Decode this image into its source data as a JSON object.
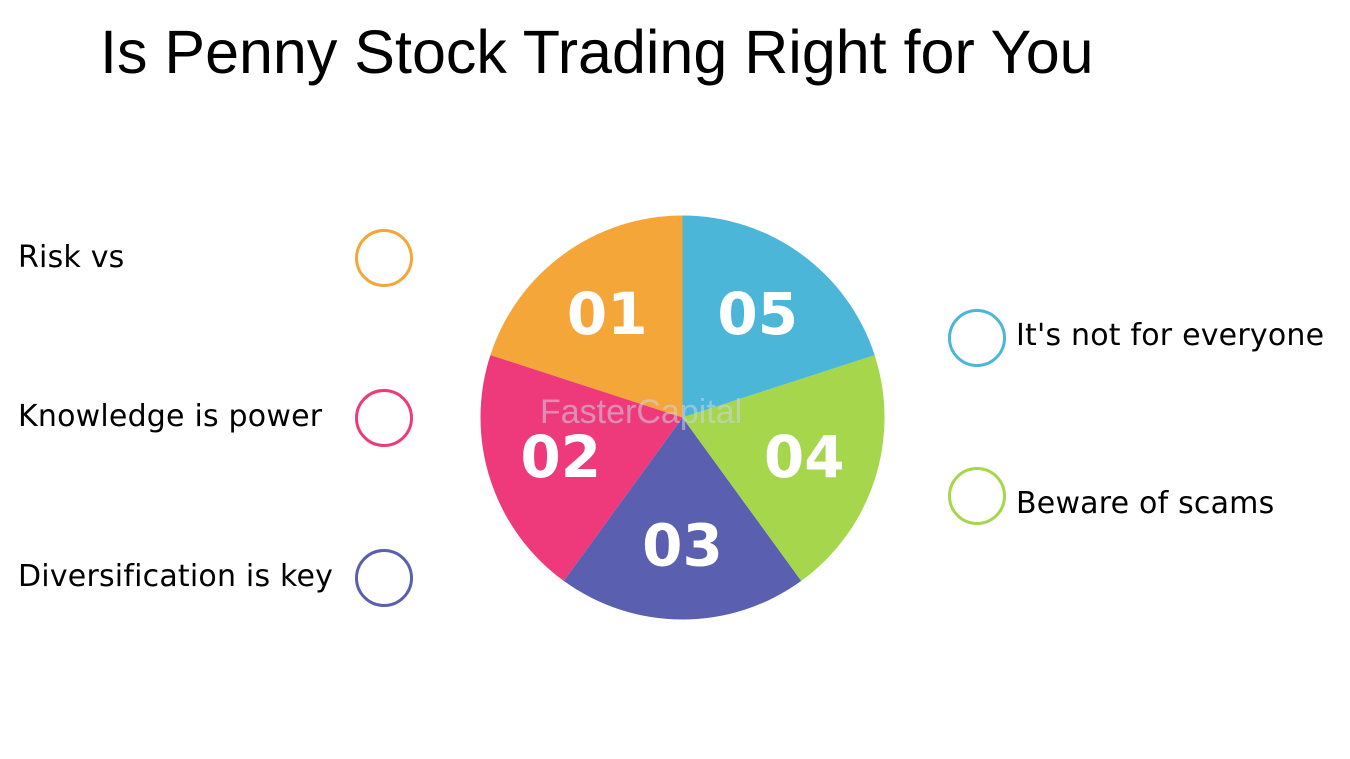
{
  "title": "Is Penny Stock Trading Right for You",
  "watermark": "FasterCapital",
  "colors": {
    "orange": "#f5a638",
    "pink": "#ee3a7a",
    "purple": "#5b5faf",
    "green": "#a6d64c",
    "blue": "#4bb6d8"
  },
  "segments": [
    {
      "number": "01",
      "color": "#f5a638"
    },
    {
      "number": "02",
      "color": "#ee3a7a"
    },
    {
      "number": "03",
      "color": "#5b5faf"
    },
    {
      "number": "04",
      "color": "#a6d64c"
    },
    {
      "number": "05",
      "color": "#4bb6d8"
    }
  ],
  "items": [
    {
      "label": "Risk vs",
      "color": "#f5a638"
    },
    {
      "label": "Knowledge is power",
      "color": "#ee3a7a"
    },
    {
      "label": "Diversification is key",
      "color": "#5b5faf"
    },
    {
      "label": "It's not for everyone",
      "color": "#4bb6d8"
    },
    {
      "label": "Beware of scams",
      "color": "#a6d64c"
    }
  ]
}
